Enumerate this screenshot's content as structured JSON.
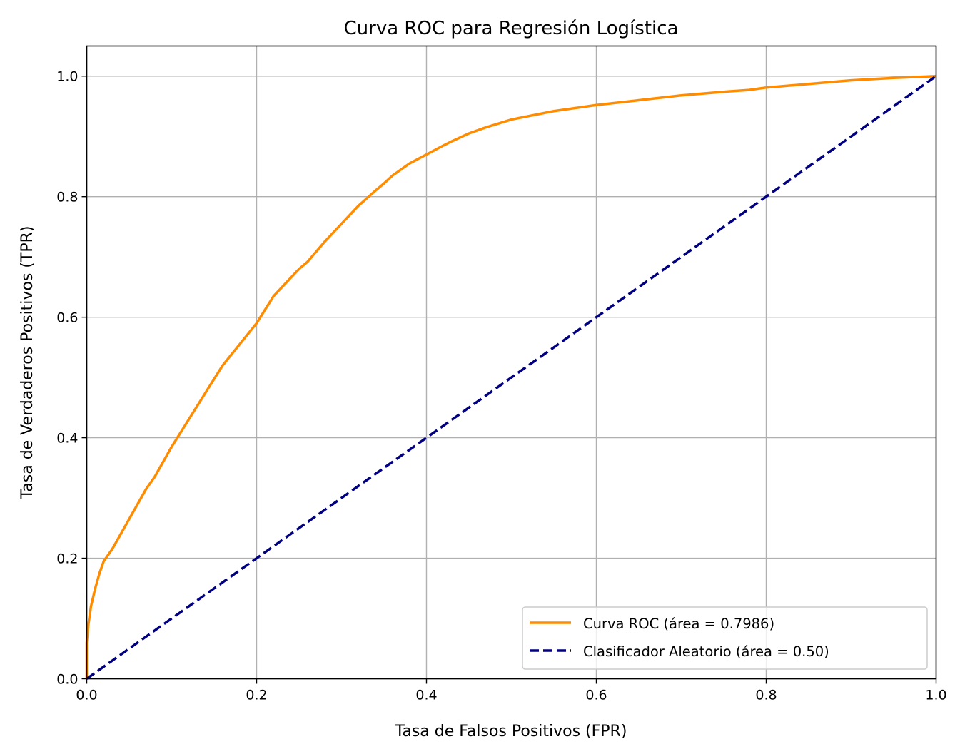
{
  "chart_data": {
    "type": "line",
    "title": "Curva ROC para Regresión Logística",
    "xlabel": "Tasa de Falsos Positivos (FPR)",
    "ylabel": "Tasa de Verdaderos Positivos (TPR)",
    "xlim": [
      0.0,
      1.0
    ],
    "ylim": [
      0.0,
      1.05
    ],
    "xticks": [
      0.0,
      0.2,
      0.4,
      0.6,
      0.8,
      1.0
    ],
    "yticks": [
      0.0,
      0.2,
      0.4,
      0.6,
      0.8,
      1.0
    ],
    "xtick_labels": [
      "0.0",
      "0.2",
      "0.4",
      "0.6",
      "0.8",
      "1.0"
    ],
    "ytick_labels": [
      "0.0",
      "0.2",
      "0.4",
      "0.6",
      "0.8",
      "1.0"
    ],
    "grid": true,
    "legend_position": "lower-right",
    "series": [
      {
        "name": "Curva ROC (área = 0.7986)",
        "color": "#ff8c00",
        "style": "solid",
        "x": [
          0.0,
          0.0,
          0.002,
          0.005,
          0.01,
          0.015,
          0.02,
          0.03,
          0.04,
          0.05,
          0.06,
          0.07,
          0.08,
          0.1,
          0.12,
          0.14,
          0.16,
          0.18,
          0.2,
          0.22,
          0.24,
          0.25,
          0.26,
          0.28,
          0.3,
          0.32,
          0.34,
          0.35,
          0.36,
          0.38,
          0.4,
          0.42,
          0.43,
          0.45,
          0.47,
          0.5,
          0.55,
          0.6,
          0.65,
          0.7,
          0.75,
          0.78,
          0.8,
          0.85,
          0.9,
          0.95,
          1.0
        ],
        "y": [
          0.0,
          0.06,
          0.09,
          0.12,
          0.15,
          0.175,
          0.195,
          0.215,
          0.24,
          0.265,
          0.29,
          0.315,
          0.335,
          0.385,
          0.43,
          0.475,
          0.52,
          0.555,
          0.59,
          0.635,
          0.665,
          0.68,
          0.692,
          0.725,
          0.755,
          0.785,
          0.81,
          0.822,
          0.835,
          0.855,
          0.87,
          0.885,
          0.892,
          0.905,
          0.915,
          0.928,
          0.942,
          0.952,
          0.96,
          0.968,
          0.974,
          0.977,
          0.981,
          0.987,
          0.993,
          0.997,
          1.0
        ]
      },
      {
        "name": "Clasificador Aleatorio (área = 0.50)",
        "color": "#000080",
        "style": "dashed",
        "x": [
          0.0,
          1.0
        ],
        "y": [
          0.0,
          1.0
        ]
      }
    ]
  }
}
